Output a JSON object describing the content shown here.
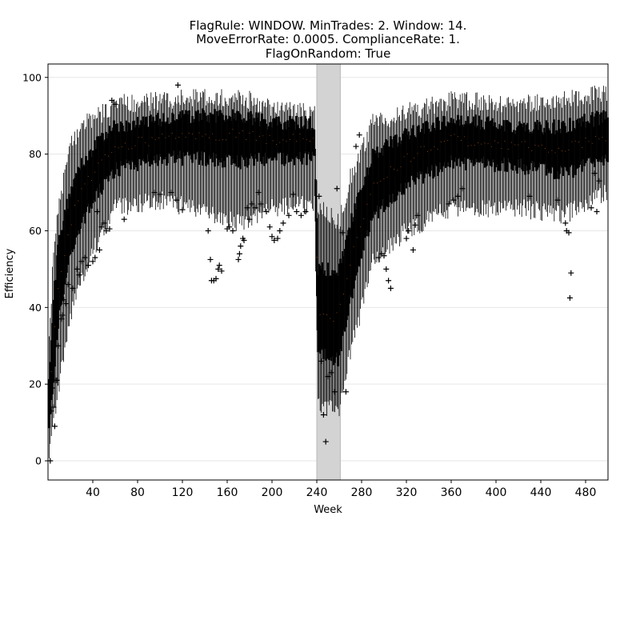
{
  "chart_data": {
    "type": "boxplot",
    "title_lines": [
      "FlagRule: WINDOW. MinTrades: 2. Window: 14.",
      "MoveErrorRate: 0.0005. ComplianceRate: 1.",
      "FlagOnRandom: True"
    ],
    "xlabel": "Week",
    "ylabel": "Efficiency",
    "xlim": [
      0,
      500
    ],
    "ylim": [
      -5,
      103.5
    ],
    "x_ticks": [
      40,
      80,
      120,
      160,
      200,
      240,
      280,
      320,
      360,
      400,
      440,
      480
    ],
    "y_ticks": [
      0,
      20,
      40,
      60,
      80,
      100
    ],
    "grid": "horizontal",
    "shaded_region": {
      "x_start": 240,
      "x_end": 261,
      "color": "#d3d3d3"
    },
    "box_color": "#000000",
    "median_color": "#d2691e",
    "flier_marker": "+",
    "profile": [
      {
        "week": 1,
        "lo": 0,
        "q1": 8,
        "med": 14,
        "q3": 22,
        "hi": 30
      },
      {
        "week": 5,
        "lo": 10,
        "q1": 22,
        "med": 32,
        "q3": 42,
        "hi": 55
      },
      {
        "week": 10,
        "lo": 20,
        "q1": 38,
        "med": 48,
        "q3": 58,
        "hi": 68
      },
      {
        "week": 20,
        "lo": 38,
        "q1": 54,
        "med": 62,
        "q3": 70,
        "hi": 82
      },
      {
        "week": 30,
        "lo": 48,
        "q1": 62,
        "med": 70,
        "q3": 77,
        "hi": 88
      },
      {
        "week": 45,
        "lo": 58,
        "q1": 70,
        "med": 77,
        "q3": 83,
        "hi": 90
      },
      {
        "week": 60,
        "lo": 66,
        "q1": 76,
        "med": 82,
        "q3": 87,
        "hi": 93
      },
      {
        "week": 100,
        "lo": 68,
        "q1": 79,
        "med": 84,
        "q3": 89,
        "hi": 94
      },
      {
        "week": 140,
        "lo": 65,
        "q1": 79,
        "med": 85,
        "q3": 90,
        "hi": 95
      },
      {
        "week": 170,
        "lo": 62,
        "q1": 78,
        "med": 85,
        "q3": 90,
        "hi": 95
      },
      {
        "week": 200,
        "lo": 66,
        "q1": 79,
        "med": 84,
        "q3": 88,
        "hi": 92
      },
      {
        "week": 238,
        "lo": 67,
        "q1": 79,
        "med": 84,
        "q3": 88,
        "hi": 91
      },
      {
        "week": 241,
        "lo": 14,
        "q1": 28,
        "med": 38,
        "q3": 50,
        "hi": 66
      },
      {
        "week": 250,
        "lo": 14,
        "q1": 28,
        "med": 37,
        "q3": 50,
        "hi": 65
      },
      {
        "week": 260,
        "lo": 12,
        "q1": 26,
        "med": 38,
        "q3": 50,
        "hi": 62
      },
      {
        "week": 270,
        "lo": 28,
        "q1": 42,
        "med": 52,
        "q3": 62,
        "hi": 74
      },
      {
        "week": 290,
        "lo": 52,
        "q1": 64,
        "med": 72,
        "q3": 80,
        "hi": 88
      },
      {
        "week": 320,
        "lo": 60,
        "q1": 72,
        "med": 79,
        "q3": 85,
        "hi": 91
      },
      {
        "week": 360,
        "lo": 66,
        "q1": 78,
        "med": 84,
        "q3": 89,
        "hi": 94
      },
      {
        "week": 420,
        "lo": 66,
        "q1": 77,
        "med": 82,
        "q3": 87,
        "hi": 93
      },
      {
        "week": 460,
        "lo": 64,
        "q1": 75,
        "med": 81,
        "q3": 87,
        "hi": 94
      },
      {
        "week": 500,
        "lo": 70,
        "q1": 79,
        "med": 85,
        "q3": 90,
        "hi": 96
      }
    ],
    "fliers": [
      [
        2,
        0
      ],
      [
        3,
        13
      ],
      [
        4,
        19
      ],
      [
        5,
        14
      ],
      [
        6,
        9
      ],
      [
        7,
        21
      ],
      [
        8,
        21
      ],
      [
        9,
        30
      ],
      [
        12,
        37
      ],
      [
        13,
        38
      ],
      [
        14,
        42
      ],
      [
        16,
        41
      ],
      [
        18,
        46
      ],
      [
        22,
        45
      ],
      [
        26,
        50
      ],
      [
        28,
        48.5
      ],
      [
        30,
        52
      ],
      [
        33,
        53
      ],
      [
        36,
        51
      ],
      [
        40,
        52
      ],
      [
        42,
        53
      ],
      [
        44,
        65
      ],
      [
        46,
        55
      ],
      [
        48,
        61
      ],
      [
        50,
        62
      ],
      [
        52,
        60
      ],
      [
        55,
        60.5
      ],
      [
        57,
        94
      ],
      [
        60,
        93
      ],
      [
        68,
        63
      ],
      [
        95,
        70
      ],
      [
        100,
        69.5
      ],
      [
        110,
        70
      ],
      [
        115,
        68
      ],
      [
        120,
        65.5
      ],
      [
        116,
        98
      ],
      [
        143,
        60
      ],
      [
        145,
        52.5
      ],
      [
        146,
        47
      ],
      [
        148,
        47
      ],
      [
        150,
        47.5
      ],
      [
        152,
        50
      ],
      [
        153,
        51
      ],
      [
        155,
        49.5
      ],
      [
        160,
        60.5
      ],
      [
        162,
        61
      ],
      [
        165,
        60
      ],
      [
        170,
        52.5
      ],
      [
        171,
        54
      ],
      [
        172,
        56
      ],
      [
        174,
        58
      ],
      [
        175,
        57.5
      ],
      [
        178,
        66
      ],
      [
        180,
        63
      ],
      [
        182,
        67
      ],
      [
        185,
        66
      ],
      [
        188,
        70
      ],
      [
        190,
        67
      ],
      [
        195,
        65
      ],
      [
        198,
        61
      ],
      [
        200,
        58.5
      ],
      [
        202,
        57.5
      ],
      [
        205,
        58
      ],
      [
        207,
        60
      ],
      [
        210,
        62
      ],
      [
        215,
        64
      ],
      [
        219,
        69.5
      ],
      [
        222,
        65
      ],
      [
        226,
        64
      ],
      [
        230,
        65
      ],
      [
        242,
        69
      ],
      [
        244,
        26
      ],
      [
        246,
        12
      ],
      [
        248,
        5
      ],
      [
        250,
        22
      ],
      [
        253,
        23
      ],
      [
        256,
        18
      ],
      [
        258,
        71
      ],
      [
        263,
        59.5
      ],
      [
        266,
        18
      ],
      [
        275,
        82
      ],
      [
        278,
        85
      ],
      [
        295,
        53
      ],
      [
        298,
        54
      ],
      [
        300,
        53.5
      ],
      [
        302,
        50
      ],
      [
        304,
        47
      ],
      [
        306,
        45
      ],
      [
        310,
        75
      ],
      [
        320,
        58
      ],
      [
        322,
        60
      ],
      [
        326,
        55
      ],
      [
        328,
        61.5
      ],
      [
        330,
        64
      ],
      [
        358,
        67
      ],
      [
        362,
        68
      ],
      [
        366,
        69
      ],
      [
        370,
        71
      ],
      [
        430,
        69
      ],
      [
        455,
        68
      ],
      [
        462,
        62
      ],
      [
        463,
        60
      ],
      [
        465,
        59.5
      ],
      [
        467,
        49
      ],
      [
        466,
        42.5
      ],
      [
        485,
        66
      ],
      [
        490,
        65
      ],
      [
        488,
        75
      ],
      [
        492,
        73
      ]
    ]
  }
}
